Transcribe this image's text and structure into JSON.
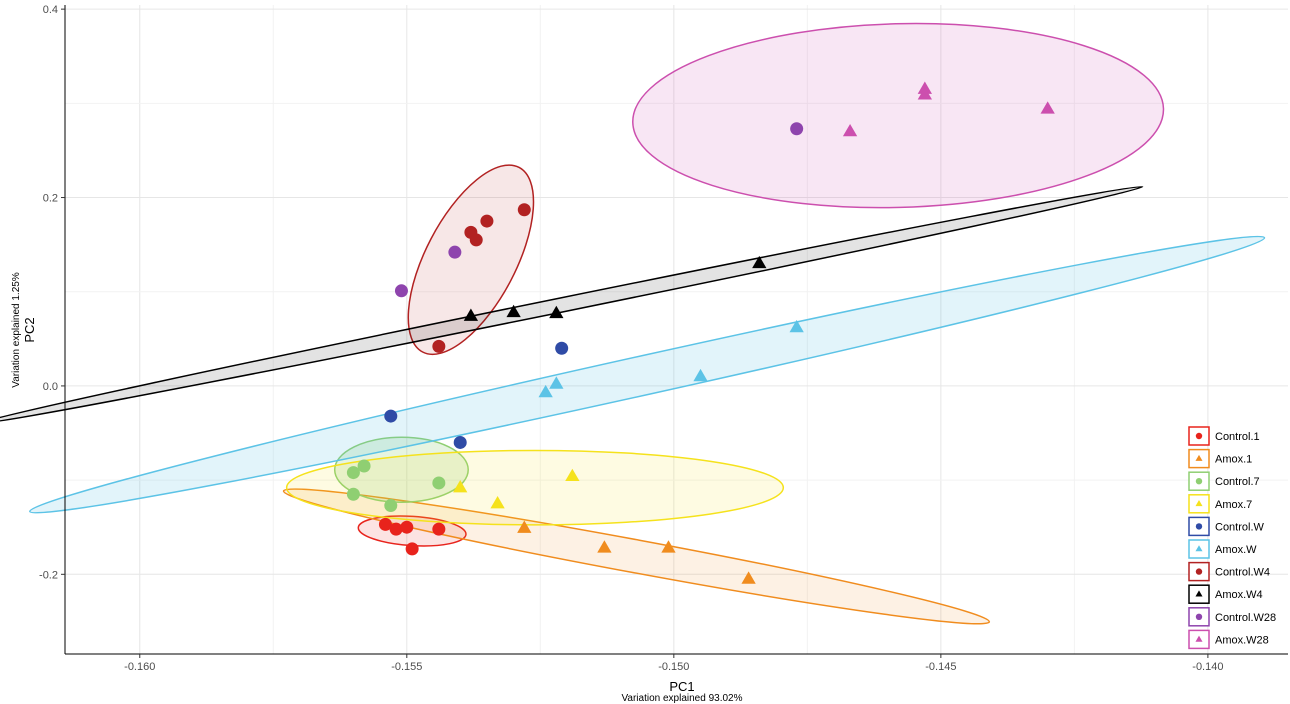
{
  "chart_data": {
    "type": "scatter",
    "xlabel": "PC1",
    "xlabel_sub": "Variation explained 93.02%",
    "ylabel": "PC2",
    "ylabel_sub": "Variation explained 1.25%",
    "xlim": [
      -0.1614,
      -0.1385
    ],
    "ylim": [
      -0.2846,
      0.4044
    ],
    "x_ticks": [
      -0.16,
      -0.155,
      -0.15,
      -0.145,
      -0.14
    ],
    "x_tick_labels": [
      "-0.160",
      "-0.155",
      "-0.150",
      "-0.145",
      "-0.140"
    ],
    "y_ticks": [
      -0.2,
      0.0,
      0.2,
      0.4
    ],
    "y_tick_labels": [
      "-0.2",
      "0.0",
      "0.2",
      "0.4"
    ],
    "grid": true,
    "legend_position": "bottom-right",
    "series": [
      {
        "name": "Control.1",
        "color": "#e8231c",
        "shape": "circle",
        "points": [
          [
            -0.1554,
            -0.147
          ],
          [
            -0.1552,
            -0.152
          ],
          [
            -0.155,
            -0.15
          ],
          [
            -0.1544,
            -0.152
          ],
          [
            -0.1549,
            -0.173
          ]
        ],
        "ellipse": {
          "cx": -0.1549,
          "cy": -0.154,
          "rx": 0.00101,
          "ry": 0.0155,
          "angle": 3.6,
          "fill": "rgba(232,35,28,0.13)",
          "stroke": "#e8231c"
        }
      },
      {
        "name": "Amox.1",
        "color": "#f08c1e",
        "shape": "triangle",
        "points": [
          [
            -0.1528,
            -0.151
          ],
          [
            -0.1513,
            -0.172
          ],
          [
            -0.1501,
            -0.172
          ],
          [
            -0.1486,
            -0.205
          ]
        ],
        "ellipse": {
          "cx": -0.1507,
          "cy": -0.181,
          "rx": 0.00672,
          "ry": 0.0175,
          "angle": 10.5,
          "fill": "rgba(240,140,30,0.12)",
          "stroke": "#f08c1e"
        }
      },
      {
        "name": "Control.7",
        "color": "#8fcf72",
        "shape": "circle",
        "points": [
          [
            -0.1558,
            -0.085
          ],
          [
            -0.156,
            -0.092
          ],
          [
            -0.156,
            -0.115
          ],
          [
            -0.1544,
            -0.103
          ],
          [
            -0.1553,
            -0.127
          ]
        ],
        "ellipse": {
          "cx": -0.1551,
          "cy": -0.089,
          "rx": 0.00125,
          "ry": 0.0345,
          "angle": 0,
          "fill": "rgba(143,207,114,0.22)",
          "stroke": "#8fcf72"
        }
      },
      {
        "name": "Amox.7",
        "color": "#f5e21c",
        "shape": "triangle",
        "points": [
          [
            -0.154,
            -0.108
          ],
          [
            -0.1533,
            -0.125
          ],
          [
            -0.1519,
            -0.096
          ]
        ],
        "ellipse": {
          "cx": -0.1526,
          "cy": -0.108,
          "rx": 0.00465,
          "ry": 0.0395,
          "angle": 0,
          "fill": "rgba(245,226,28,0.13)",
          "stroke": "#f5e21c"
        }
      },
      {
        "name": "Control.W",
        "color": "#2f4ba6",
        "shape": "circle",
        "points": [
          [
            -0.1553,
            -0.032
          ],
          [
            -0.154,
            -0.06
          ],
          [
            -0.1521,
            0.04
          ]
        ]
      },
      {
        "name": "Amox.W",
        "color": "#5cc3e6",
        "shape": "triangle",
        "points": [
          [
            -0.1524,
            -0.007
          ],
          [
            -0.1522,
            0.002
          ],
          [
            -0.1495,
            0.01
          ],
          [
            -0.1477,
            0.062
          ]
        ],
        "ellipse": {
          "cx": -0.1505,
          "cy": 0.012,
          "rx": 0.01184,
          "ry": 0.0208,
          "angle": -12.5,
          "fill": "rgba(92,195,230,0.18)",
          "stroke": "#5cc3e6"
        }
      },
      {
        "name": "Control.W4",
        "color": "#b22222",
        "shape": "circle",
        "points": [
          [
            -0.1528,
            0.187
          ],
          [
            -0.1535,
            0.175
          ],
          [
            -0.1538,
            0.163
          ],
          [
            -0.1537,
            0.155
          ],
          [
            -0.1544,
            0.042
          ]
        ],
        "ellipse": {
          "cx": -0.1538,
          "cy": 0.134,
          "rx": 0.00195,
          "ry": 0.0478,
          "angle": -62.4,
          "fill": "rgba(178,34,34,0.11)",
          "stroke": "#b22222"
        }
      },
      {
        "name": "Amox.W4",
        "color": "#000000",
        "shape": "triangle",
        "points": [
          [
            -0.1538,
            0.074
          ],
          [
            -0.153,
            0.078
          ],
          [
            -0.1522,
            0.077
          ],
          [
            -0.1484,
            0.13
          ]
        ],
        "ellipse": {
          "cx": -0.1521,
          "cy": 0.086,
          "rx": 0.0111,
          "ry": 0.0075,
          "angle": -11.5,
          "fill": "rgba(0,0,0,0.11)",
          "stroke": "#000000"
        }
      },
      {
        "name": "Control.W28",
        "color": "#8e44ad",
        "shape": "circle",
        "points": [
          [
            -0.1541,
            0.142
          ],
          [
            -0.1551,
            0.101
          ],
          [
            -0.1477,
            0.273
          ]
        ]
      },
      {
        "name": "Amox.W28",
        "color": "#cc4fae",
        "shape": "triangle",
        "points": [
          [
            -0.1453,
            0.315
          ],
          [
            -0.1453,
            0.309
          ],
          [
            -0.1467,
            0.27
          ],
          [
            -0.143,
            0.294
          ]
        ],
        "ellipse": {
          "cx": -0.1458,
          "cy": 0.287,
          "rx": 0.00497,
          "ry": 0.0975,
          "angle": -1.5,
          "fill": "rgba(204,79,174,0.14)",
          "stroke": "#cc4fae"
        }
      }
    ]
  }
}
